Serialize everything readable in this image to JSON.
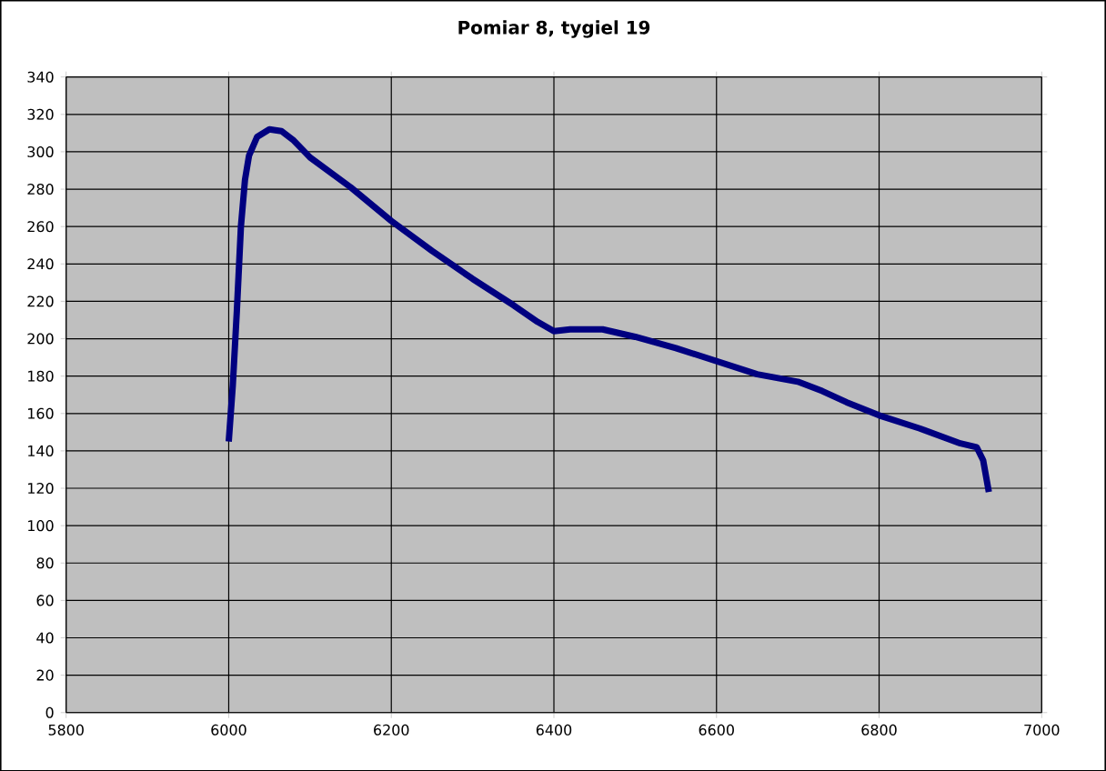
{
  "chart_data": {
    "type": "line",
    "title": "Pomiar 8, tygiel 19",
    "series": [
      {
        "color": "#000080",
        "x": [
          6000,
          6005,
          6010,
          6015,
          6020,
          6025,
          6035,
          6050,
          6065,
          6080,
          6100,
          6150,
          6200,
          6250,
          6300,
          6350,
          6380,
          6400,
          6420,
          6460,
          6500,
          6550,
          6600,
          6650,
          6700,
          6730,
          6760,
          6800,
          6850,
          6900,
          6920,
          6928,
          6935
        ],
        "values": [
          145,
          175,
          215,
          260,
          285,
          298,
          308,
          312,
          311,
          306,
          297,
          281,
          263,
          247,
          232,
          218,
          209,
          204,
          205,
          205,
          201,
          195,
          188,
          181,
          177,
          172,
          166,
          159,
          152,
          144,
          142,
          135,
          118
        ]
      }
    ],
    "xlim": [
      5800,
      7000
    ],
    "xticks": [
      5800,
      6000,
      6200,
      6400,
      6600,
      6800,
      7000
    ],
    "ylim": [
      0,
      340
    ],
    "yticks": [
      0,
      20,
      40,
      60,
      80,
      100,
      120,
      140,
      160,
      180,
      200,
      220,
      240,
      260,
      280,
      300,
      320,
      340
    ],
    "grid": true,
    "marker": "none",
    "line_style": "solid"
  }
}
